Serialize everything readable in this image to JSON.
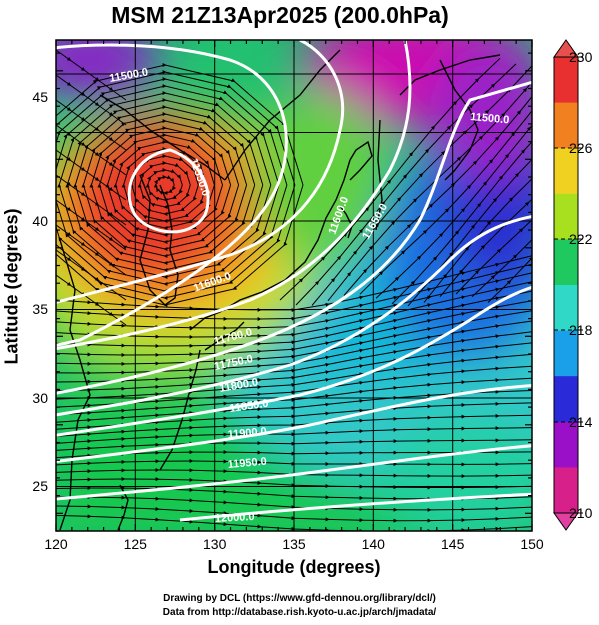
{
  "title": "MSM 21Z13Apr2025 (200.0hPa)",
  "axes": {
    "xlabel": "Longitude (degrees)",
    "ylabel": "Latitude  (degrees)",
    "x_ticks": [
      "120",
      "125",
      "130",
      "135",
      "140",
      "145",
      "150"
    ],
    "y_ticks": [
      "25",
      "30",
      "35",
      "40",
      "45"
    ],
    "xlim": [
      120,
      150
    ],
    "ylim": [
      22.5,
      47.6
    ]
  },
  "colorbar": {
    "ticks": [
      "230",
      "226",
      "222",
      "218",
      "214",
      "210"
    ],
    "range": [
      210,
      230
    ],
    "colors": [
      "#d8208a",
      "#9a10c8",
      "#2a2ad8",
      "#1aa0e8",
      "#30d8c8",
      "#20c860",
      "#a8e020",
      "#f0d020",
      "#f08020",
      "#e83030"
    ]
  },
  "contour_labels": [
    "11500.0",
    "11500.0",
    "11550.0",
    "11600.0",
    "11600.0",
    "11650.0",
    "11700.0",
    "11750.0",
    "11800.0",
    "11850.0",
    "11900.0",
    "11950.0",
    "12000.0"
  ],
  "credits": {
    "line1": "Drawing by DCL (https://www.gfd-dennou.org/library/dcl/)",
    "line2": "Data from http://database.rish.kyoto-u.ac.jp/arch/jmadata/"
  }
}
